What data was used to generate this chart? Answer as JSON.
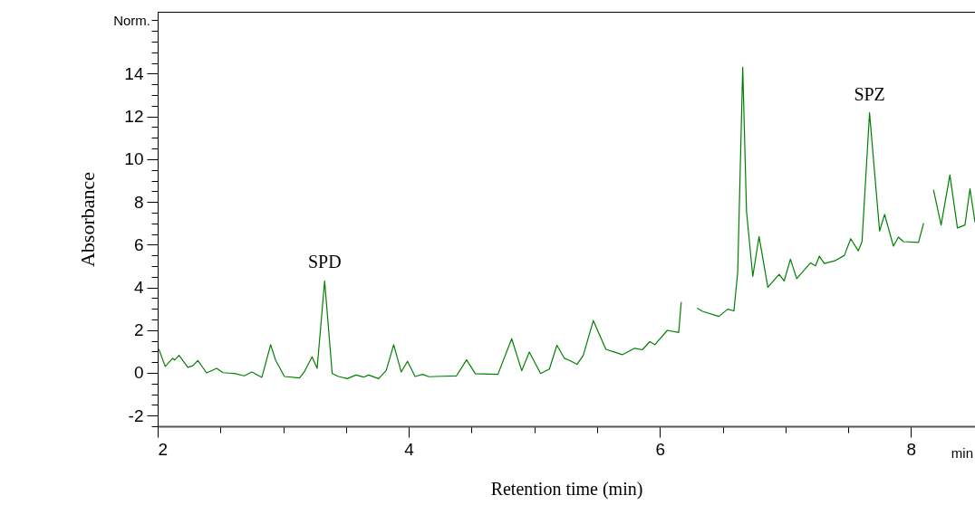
{
  "chart_data": {
    "type": "line",
    "xlabel": "Retention time (min)",
    "ylabel": "Absorbance",
    "annotations": [
      "Norm.",
      "min",
      {
        "text": "SPD",
        "x": 3.33,
        "y": 4.3
      },
      {
        "text": "SPZ",
        "x": 7.67,
        "y": 12.17
      }
    ],
    "xlim": [
      2,
      8.51
    ],
    "xticks": [
      2,
      {
        "value": 2.5,
        "label": null
      },
      {
        "value": 3,
        "label": null
      },
      {
        "value": 3.5,
        "label": null
      },
      4,
      {
        "value": 4.5,
        "label": null
      },
      {
        "value": 5,
        "label": null
      },
      {
        "value": 5.5,
        "label": null
      },
      6,
      {
        "value": 6.5,
        "label": null
      },
      {
        "value": 7,
        "label": null
      },
      {
        "value": 7.5,
        "label": null
      },
      8
    ],
    "ylim": [
      -2.5,
      16.9
    ],
    "yticks": [
      {
        "value": -2.5,
        "label": null
      },
      -2,
      {
        "value": -1.5,
        "label": null
      },
      {
        "value": -1,
        "label": null
      },
      {
        "value": -0.5,
        "label": null
      },
      0,
      {
        "value": 0.5,
        "label": null
      },
      {
        "value": 1,
        "label": null
      },
      {
        "value": 1.5,
        "label": null
      },
      2,
      {
        "value": 2.5,
        "label": null
      },
      {
        "value": 3,
        "label": null
      },
      {
        "value": 3.5,
        "label": null
      },
      4,
      {
        "value": 4.5,
        "label": null
      },
      {
        "value": 5,
        "label": null
      },
      {
        "value": 5.5,
        "label": null
      },
      6,
      {
        "value": 6.5,
        "label": null
      },
      {
        "value": 7,
        "label": null
      },
      {
        "value": 7.5,
        "label": null
      },
      8,
      {
        "value": 8.5,
        "label": null
      },
      {
        "value": 9,
        "label": null
      },
      {
        "value": 9.5,
        "label": null
      },
      10,
      {
        "value": 10.5,
        "label": null
      },
      {
        "value": 11,
        "label": null
      },
      {
        "value": 11.5,
        "label": null
      },
      12,
      {
        "value": 12.5,
        "label": null
      },
      {
        "value": 13,
        "label": null
      },
      {
        "value": 13.5,
        "label": null
      },
      14,
      {
        "value": 14.5,
        "label": null
      },
      {
        "value": 15,
        "label": null
      },
      {
        "value": 15.5,
        "label": null
      },
      {
        "value": 16,
        "label": null
      },
      {
        "value": 16.5,
        "label": null
      }
    ],
    "grid": false,
    "marker": "none",
    "line_style": "solid",
    "series": [
      {
        "color": "#008000",
        "x": [
          2.01,
          2.06,
          2.12,
          2.135,
          2.17,
          2.24,
          2.28,
          2.32,
          2.39,
          2.47,
          2.52,
          2.61,
          2.69,
          2.75,
          2.83,
          2.9,
          2.94,
          3.01,
          3.13,
          3.17,
          3.23,
          3.27,
          3.33,
          3.39,
          3.44,
          3.51,
          3.58,
          3.64,
          3.68,
          3.76,
          3.82,
          3.88,
          3.94,
          3.99,
          4.05,
          4.11,
          4.16,
          4.27,
          4.38,
          4.46,
          4.53,
          4.71,
          4.82,
          4.9,
          4.96,
          5.05,
          5.12,
          5.18,
          5.24,
          5.28,
          5.34,
          5.39,
          5.47,
          5.57,
          5.64,
          5.7,
          5.8,
          5.86,
          5.92,
          5.96,
          6.06,
          6.15,
          6.17,
          6.2,
          6.26,
          6.3,
          6.34,
          6.47,
          6.54,
          6.59,
          6.62,
          6.66,
          6.69,
          6.74,
          6.79,
          6.86,
          6.95,
          6.99,
          7.04,
          7.09,
          7.2,
          7.24,
          7.27,
          7.31,
          7.4,
          7.47,
          7.52,
          7.58,
          7.61,
          7.67,
          7.75,
          7.79,
          7.86,
          7.9,
          7.94,
          8.06,
          8.1,
          8.14,
          8.18,
          8.24,
          8.31,
          8.37,
          8.43,
          8.47,
          8.51
        ],
        "values": [
          1.1,
          0.3,
          0.68,
          0.6,
          0.82,
          0.26,
          0.33,
          0.58,
          0,
          0.21,
          0.01,
          -0.03,
          -0.14,
          0.04,
          -0.21,
          1.32,
          0.58,
          -0.17,
          -0.24,
          0.07,
          0.75,
          0.21,
          4.3,
          -0.03,
          -0.17,
          -0.27,
          -0.1,
          -0.2,
          -0.1,
          -0.27,
          0.11,
          1.32,
          0.04,
          0.54,
          -0.17,
          -0.07,
          -0.18,
          -0.16,
          -0.14,
          0.61,
          -0.04,
          -0.07,
          1.6,
          0.1,
          0.97,
          -0.03,
          0.18,
          1.29,
          0.68,
          0.58,
          0.4,
          0.82,
          2.45,
          1.1,
          0.97,
          0.85,
          1.15,
          1.08,
          1.46,
          1.32,
          1.99,
          1.89,
          3.3,
          null,
          null,
          3.02,
          2.88,
          2.64,
          2.98,
          2.9,
          4.72,
          14.3,
          7.57,
          4.51,
          6.38,
          4.01,
          4.61,
          4.3,
          5.32,
          4.41,
          5.15,
          5.01,
          5.46,
          5.12,
          5.26,
          5.5,
          6.28,
          5.71,
          6.14,
          12.17,
          6.64,
          7.42,
          5.93,
          6.35,
          6.14,
          6.1,
          6.99,
          null,
          8.55,
          6.92,
          9.26,
          6.78,
          6.92,
          8.62,
          7.06
        ]
      }
    ]
  }
}
